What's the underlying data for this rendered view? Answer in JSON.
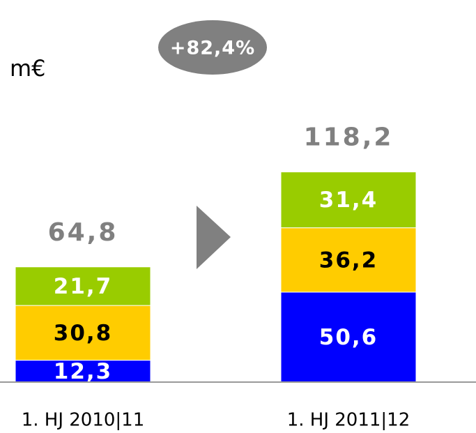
{
  "chart_data": {
    "type": "stacked_bar",
    "unit_label": "m€",
    "annotation": "+82,4%",
    "categories": [
      "1. HJ 2010|11",
      "1. HJ 2011|12"
    ],
    "series": [
      {
        "color": "#0000ff",
        "label_color": "#ffffff",
        "values": [
          12.3,
          50.6
        ],
        "value_labels": [
          "12,3",
          "50,6"
        ]
      },
      {
        "color": "#ffcc00",
        "label_color": "#000000",
        "values": [
          30.8,
          36.2
        ],
        "value_labels": [
          "30,8",
          "36,2"
        ]
      },
      {
        "color": "#99cc00",
        "label_color": "#ffffff",
        "values": [
          21.7,
          31.4
        ],
        "value_labels": [
          "21,7",
          "31,4"
        ]
      }
    ],
    "totals": [
      64.8,
      118.2
    ],
    "total_labels": [
      "64,8",
      "118,2"
    ]
  }
}
